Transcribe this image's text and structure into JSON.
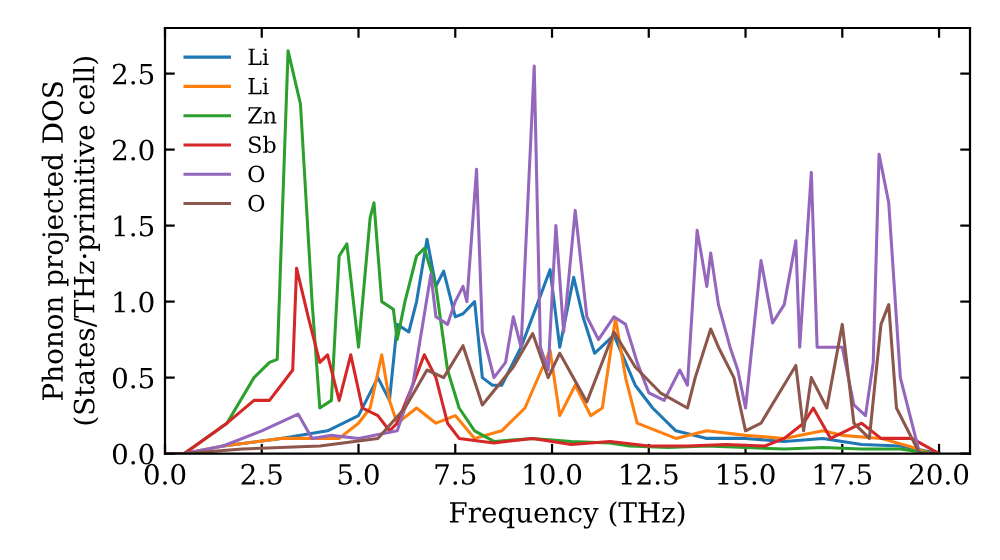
{
  "chart_data": {
    "type": "line",
    "xlabel": "Frequency (THz)",
    "ylabel": "Phonon projected DOS\n(States/THz·primitive cell)",
    "xlim": [
      0,
      20.8
    ],
    "ylim": [
      0,
      2.8
    ],
    "xticks": [
      {
        "value": 0,
        "label": "0.0"
      },
      {
        "value": 2.5,
        "label": "2.5"
      },
      {
        "value": 5,
        "label": "5.0"
      },
      {
        "value": 7.5,
        "label": "7.5"
      },
      {
        "value": 10,
        "label": "10.0"
      },
      {
        "value": 12.5,
        "label": "12.5"
      },
      {
        "value": 15,
        "label": "15.0"
      },
      {
        "value": 17.5,
        "label": "17.5"
      },
      {
        "value": 20,
        "label": "20.0"
      }
    ],
    "yticks": [
      {
        "value": 0,
        "label": "0.0"
      },
      {
        "value": 0.5,
        "label": "0.5"
      },
      {
        "value": 1,
        "label": "1.0"
      },
      {
        "value": 1.5,
        "label": "1.5"
      },
      {
        "value": 2,
        "label": "2.0"
      },
      {
        "value": 2.5,
        "label": "2.5"
      }
    ],
    "legend": "top left",
    "grid": false,
    "marker": "none",
    "line_style": "solid",
    "series": [
      {
        "name": "Li",
        "color": "#1f77b4",
        "x": [
          1.5,
          3.0,
          4.2,
          5.0,
          5.5,
          5.8,
          6.0,
          6.3,
          6.5,
          6.77,
          7.0,
          7.2,
          7.5,
          7.7,
          8.0,
          8.2,
          8.46,
          8.7,
          9.2,
          9.6,
          9.95,
          10.2,
          10.56,
          10.8,
          11.1,
          11.6,
          12.15,
          12.6,
          13.2,
          14.0,
          15.0,
          16.0,
          17.0,
          18.0,
          19.0,
          19.6,
          20.0
        ],
        "values": [
          0.05,
          0.1,
          0.15,
          0.25,
          0.5,
          0.35,
          0.85,
          0.8,
          1.0,
          1.41,
          1.1,
          1.2,
          0.9,
          0.92,
          1.0,
          0.5,
          0.45,
          0.45,
          0.7,
          0.97,
          1.21,
          0.7,
          1.16,
          0.9,
          0.66,
          0.78,
          0.45,
          0.3,
          0.15,
          0.1,
          0.1,
          0.08,
          0.1,
          0.06,
          0.05,
          0.02,
          0
        ]
      },
      {
        "name": "Li",
        "color": "#ff7f0e",
        "x": [
          0,
          0.5,
          1.5,
          3.0,
          4.5,
          5.0,
          5.3,
          5.6,
          5.8,
          6.0,
          6.5,
          7.0,
          7.5,
          8.0,
          8.7,
          9.3,
          9.95,
          10.2,
          10.6,
          11.0,
          11.3,
          11.64,
          11.9,
          12.2,
          13.2,
          14.0,
          15.0,
          16.0,
          17.0,
          17.5,
          18.5,
          19.2,
          19.8,
          20.0
        ],
        "values": [
          0,
          0,
          0.05,
          0.1,
          0.1,
          0.2,
          0.3,
          0.65,
          0.35,
          0.2,
          0.3,
          0.2,
          0.25,
          0.1,
          0.15,
          0.3,
          0.68,
          0.25,
          0.45,
          0.25,
          0.3,
          0.89,
          0.5,
          0.2,
          0.1,
          0.15,
          0.12,
          0.1,
          0.15,
          0.12,
          0.1,
          0.05,
          0,
          0
        ]
      },
      {
        "name": "Zn",
        "color": "#2ca02c",
        "x": [
          0,
          0.5,
          1.6,
          2.3,
          2.7,
          2.9,
          3.18,
          3.5,
          3.8,
          4.0,
          4.3,
          4.5,
          4.7,
          5.0,
          5.3,
          5.4,
          5.6,
          5.9,
          6.0,
          6.2,
          6.5,
          6.7,
          7.0,
          7.3,
          7.6,
          8.0,
          8.5,
          9.5,
          10.5,
          11.5,
          12.0,
          13.0,
          14.0,
          15.0,
          16.0,
          17.0,
          18.0,
          19.0,
          19.8,
          20.0
        ],
        "values": [
          0,
          0,
          0.2,
          0.5,
          0.6,
          0.62,
          2.65,
          2.3,
          1.0,
          0.3,
          0.35,
          1.3,
          1.38,
          0.7,
          1.55,
          1.65,
          1.0,
          0.95,
          0.75,
          1.0,
          1.3,
          1.35,
          1.1,
          0.55,
          0.3,
          0.15,
          0.08,
          0.1,
          0.08,
          0.07,
          0.05,
          0.04,
          0.05,
          0.04,
          0.03,
          0.04,
          0.03,
          0.03,
          0,
          0
        ]
      },
      {
        "name": "Sb",
        "color": "#d62728",
        "x": [
          0,
          0.5,
          1.6,
          2.3,
          2.7,
          3.0,
          3.3,
          3.4,
          3.7,
          4.0,
          4.2,
          4.5,
          4.8,
          5.1,
          5.5,
          5.8,
          6.0,
          6.4,
          6.7,
          7.0,
          7.3,
          7.6,
          8.5,
          9.5,
          10.5,
          11.5,
          12.5,
          13.5,
          14.5,
          15.5,
          16.0,
          16.5,
          16.75,
          17.2,
          17.6,
          18.0,
          18.5,
          19.3,
          20.0
        ],
        "values": [
          0,
          0,
          0.2,
          0.35,
          0.35,
          0.45,
          0.55,
          1.22,
          0.9,
          0.6,
          0.65,
          0.35,
          0.65,
          0.3,
          0.25,
          0.15,
          0.2,
          0.45,
          0.65,
          0.5,
          0.2,
          0.1,
          0.07,
          0.1,
          0.06,
          0.08,
          0.05,
          0.05,
          0.06,
          0.05,
          0.1,
          0.2,
          0.3,
          0.1,
          0.15,
          0.2,
          0.1,
          0.1,
          0
        ]
      },
      {
        "name": "O",
        "color": "#9467bd",
        "x": [
          0,
          0.5,
          1.5,
          2.5,
          3.44,
          3.8,
          4.3,
          5.0,
          6.0,
          6.4,
          6.87,
          7.0,
          7.3,
          7.5,
          7.7,
          7.8,
          8.05,
          8.2,
          8.5,
          8.8,
          9.0,
          9.2,
          9.54,
          9.7,
          9.9,
          10.1,
          10.3,
          10.6,
          10.9,
          11.2,
          11.6,
          11.9,
          12.2,
          12.5,
          12.9,
          13.3,
          13.5,
          13.75,
          14.0,
          14.1,
          14.3,
          14.6,
          14.8,
          15.0,
          15.4,
          15.7,
          16.0,
          16.3,
          16.4,
          16.7,
          16.85,
          17.5,
          17.8,
          18.1,
          18.3,
          18.45,
          18.7,
          19.0,
          19.5,
          20.0
        ],
        "values": [
          0,
          0,
          0.05,
          0.15,
          0.26,
          0.1,
          0.12,
          0.1,
          0.15,
          0.45,
          1.18,
          0.9,
          0.85,
          1.0,
          1.1,
          1.0,
          1.87,
          0.8,
          0.5,
          0.6,
          0.9,
          0.7,
          2.55,
          0.7,
          0.55,
          1.5,
          0.8,
          1.6,
          0.9,
          0.75,
          0.9,
          0.85,
          0.6,
          0.4,
          0.35,
          0.55,
          0.45,
          1.47,
          1.1,
          1.32,
          0.98,
          0.7,
          0.55,
          0.3,
          1.27,
          0.86,
          0.98,
          1.4,
          0.7,
          1.85,
          0.7,
          0.7,
          0.32,
          0.25,
          0.6,
          1.97,
          1.65,
          0.5,
          0,
          0
        ]
      },
      {
        "name": "O",
        "color": "#8c564b",
        "x": [
          0,
          0.5,
          2.0,
          4.0,
          5.5,
          6.2,
          6.77,
          7.2,
          7.7,
          8.2,
          9.0,
          9.5,
          9.9,
          10.2,
          10.9,
          11.6,
          12.15,
          12.8,
          13.5,
          13.7,
          14.1,
          14.3,
          14.7,
          15.0,
          15.4,
          16.3,
          16.5,
          16.7,
          17.1,
          17.5,
          17.8,
          18.2,
          18.5,
          18.7,
          18.9,
          19.5,
          20.0
        ],
        "values": [
          0,
          0,
          0.03,
          0.05,
          0.1,
          0.3,
          0.55,
          0.5,
          0.71,
          0.32,
          0.57,
          0.79,
          0.5,
          0.66,
          0.34,
          0.8,
          0.57,
          0.4,
          0.3,
          0.5,
          0.82,
          0.7,
          0.5,
          0.15,
          0.2,
          0.58,
          0.15,
          0.5,
          0.3,
          0.85,
          0.2,
          0.1,
          0.85,
          0.98,
          0.3,
          0,
          0
        ]
      }
    ]
  }
}
